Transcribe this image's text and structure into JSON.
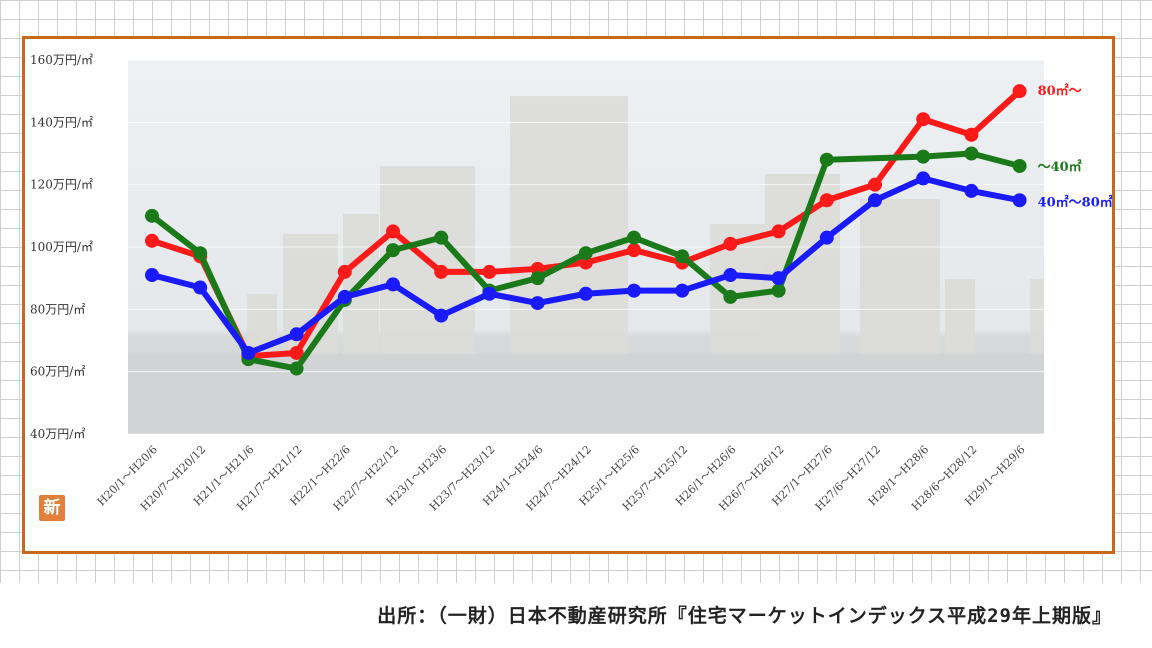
{
  "chart_data": {
    "type": "line",
    "categories": [
      "H20/1〜H20/6",
      "H20/7〜H20/12",
      "H21/1〜H21/6",
      "H21/7〜H21/12",
      "H22/1〜H22/6",
      "H22/7〜H22/12",
      "H23/1〜H23/6",
      "H23/7〜H23/12",
      "H24/1〜H24/6",
      "H24/7〜H24/12",
      "H25/1〜H25/6",
      "H25/7〜H25/12",
      "H26/1〜H26/6",
      "H26/7〜H26/12",
      "H27/1〜H27/6",
      "H27/6〜H27/12",
      "H28/1〜H28/6",
      "H28/6〜H28/12",
      "H29/1〜H29/6"
    ],
    "yticks": [
      "40万円/㎡",
      "60万円/㎡",
      "80万円/㎡",
      "100万円/㎡",
      "120万円/㎡",
      "140万円/㎡",
      "160万円/㎡"
    ],
    "ylim": [
      40,
      160
    ],
    "series": [
      {
        "name": "80㎡〜",
        "color": "#ff1a1a",
        "values": [
          102,
          97,
          65,
          66,
          92,
          105,
          92,
          92,
          93,
          95,
          99,
          95,
          101,
          105,
          115,
          120,
          141,
          136,
          150
        ]
      },
      {
        "name": "〜40㎡",
        "color": "#1a7a1a",
        "values": [
          110,
          98,
          64,
          61,
          83,
          99,
          103,
          86,
          90,
          98,
          103,
          97,
          84,
          86,
          128,
          null,
          129,
          130,
          126
        ]
      },
      {
        "name": "40㎡〜80㎡",
        "color": "#1a1aff",
        "values": [
          91,
          87,
          66,
          72,
          84,
          88,
          78,
          85,
          82,
          85,
          86,
          86,
          91,
          90,
          103,
          115,
          122,
          118,
          115
        ]
      }
    ],
    "grid": true,
    "legend": "right"
  },
  "badge": "新",
  "source": "出所：（一財）日本不動産研究所『住宅マーケットインデックス平成29年上期版』"
}
